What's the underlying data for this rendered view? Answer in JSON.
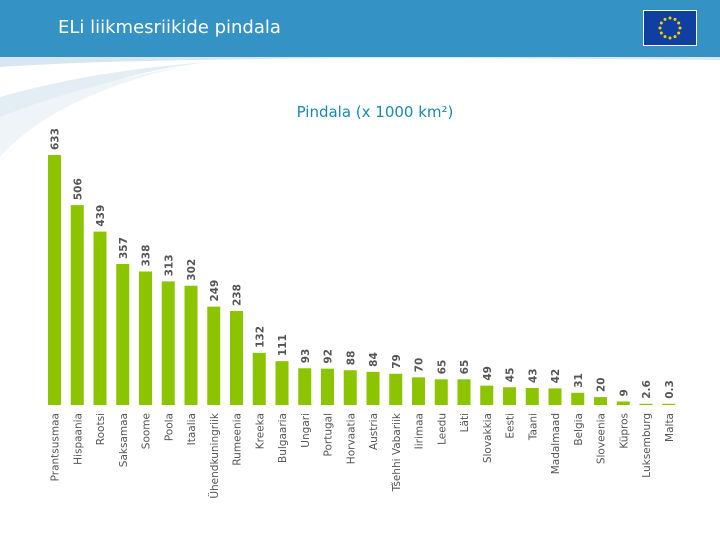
{
  "header": {
    "title": "ELi liikmesriikide pindala",
    "flag_colors": {
      "field": "#0f3fa0",
      "stars": "#f5d400"
    }
  },
  "colors": {
    "header_bar": "#3592c5",
    "bar": "#8cc400",
    "title": "#1a87b8",
    "label": "#555555"
  },
  "chart_data": {
    "type": "bar",
    "title": "Pindala (x 1000 km²)",
    "xlabel": "",
    "ylabel": "",
    "ylim": [
      0,
      633
    ],
    "grid": false,
    "categories": [
      "Prantsusmaa",
      "Hispaania",
      "Rootsi",
      "Saksamaa",
      "Soome",
      "Poola",
      "Itaalia",
      "Ühendkuningriik",
      "Rumeenia",
      "Kreeka",
      "Bulgaaria",
      "Ungari",
      "Portugal",
      "Horvaatia",
      "Austria",
      "Tšehhi Vabariik",
      "Iirimaa",
      "Leedu",
      "Läti",
      "Slovakkia",
      "Eesti",
      "Taani",
      "Madalmaad",
      "Belgia",
      "Sloveenia",
      "Küpros",
      "Luksemburg",
      "Malta"
    ],
    "values": [
      633,
      506,
      439,
      357,
      338,
      313,
      302,
      249,
      238,
      132,
      111,
      93,
      92,
      88,
      84,
      79,
      70,
      65,
      65,
      49,
      45,
      43,
      42,
      31,
      20,
      9,
      2.6,
      0.3
    ],
    "value_labels": [
      "633",
      "506",
      "439",
      "357",
      "338",
      "313",
      "302",
      "249",
      "238",
      "132",
      "111",
      "93",
      "92",
      "88",
      "84",
      "79",
      "70",
      "65",
      "65",
      "49",
      "45",
      "43",
      "42",
      "31",
      "20",
      "9",
      "2.6",
      "0.3"
    ]
  }
}
